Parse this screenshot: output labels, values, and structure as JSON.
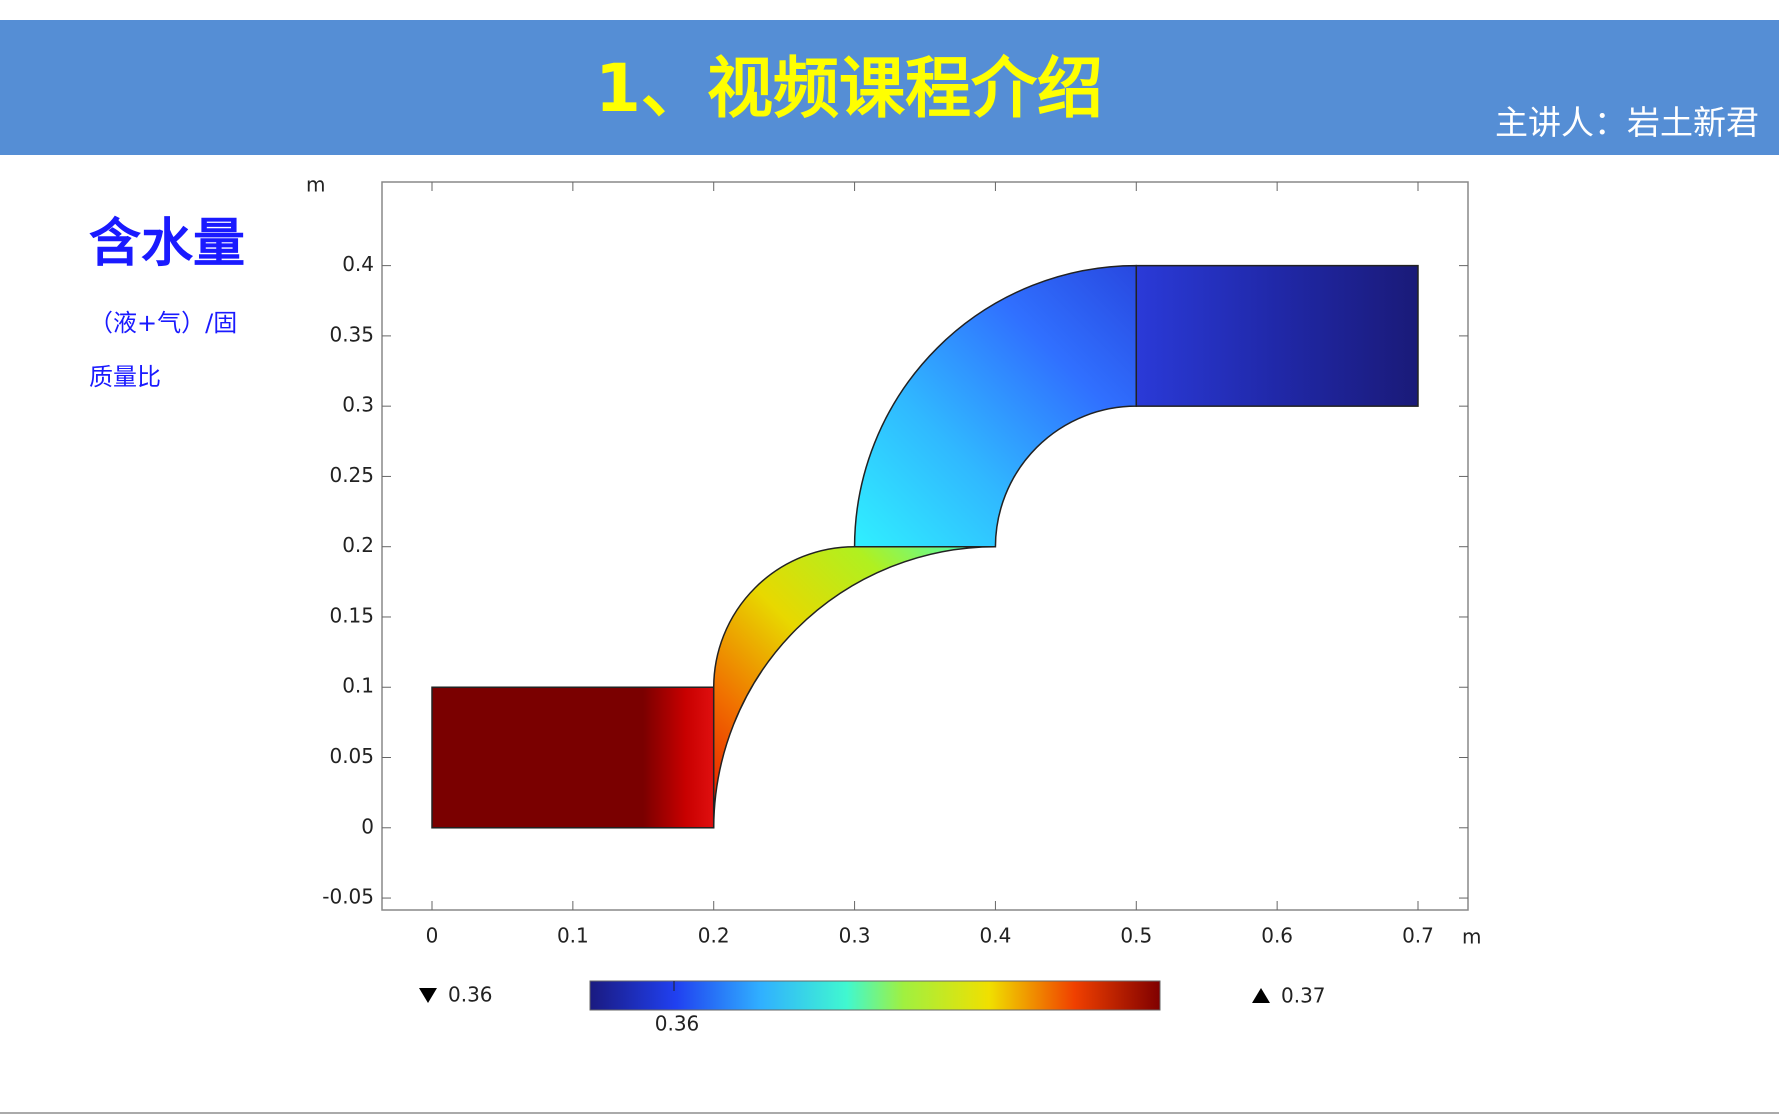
{
  "header": {
    "title": "1、视频课程介绍",
    "presenter": "主讲人：岩土新君"
  },
  "sidebar": {
    "heading": "含水量",
    "lines": [
      "（液+气）/固",
      "质量比"
    ]
  },
  "chart_data": {
    "type": "surface",
    "x_unit": "m",
    "y_unit": "m",
    "xlim": [
      -0.0355,
      0.7355
    ],
    "ylim": [
      -0.0585,
      0.4595
    ],
    "xticks": [
      0,
      0.1,
      0.2,
      0.3,
      0.4,
      0.5,
      0.6,
      0.7
    ],
    "yticks": [
      -0.05,
      0,
      0.05,
      0.1,
      0.15,
      0.2,
      0.25,
      0.3,
      0.35,
      0.4
    ],
    "colorbar": {
      "min": 0.36,
      "max": 0.37,
      "ticks": [
        0.36
      ]
    }
  }
}
